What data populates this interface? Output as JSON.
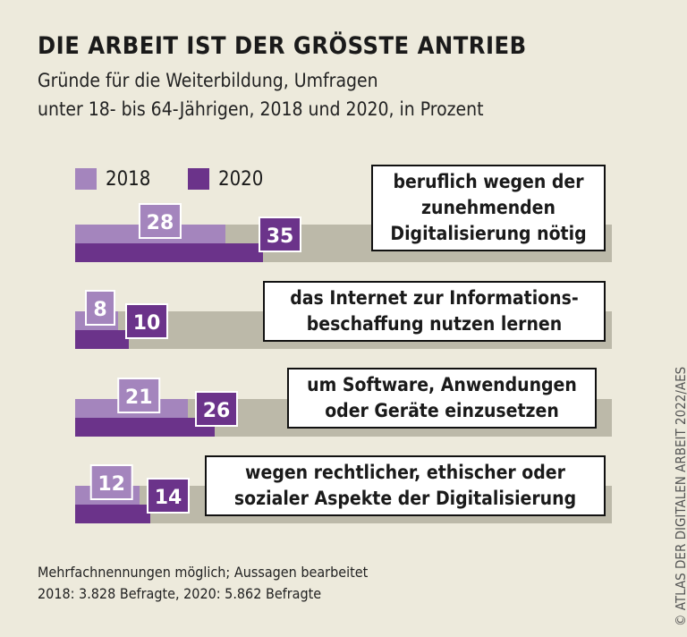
{
  "title": "DIE ARBEIT IST DER GRÖSSTE ANTRIEB",
  "subtitle": [
    "Gründe für die Weiterbildung, Umfragen",
    "unter 18- bis 64-Jährigen, 2018 und 2020, in Prozent"
  ],
  "notes": [
    "Mehrfachnennungen möglich; Aussagen bearbeitet",
    "2018: 3.828 Befragte, 2020: 5.862 Befragte"
  ],
  "credit": "© ATLAS DER DIGITALEN ARBEIT 2022/AES",
  "colors": {
    "2018": "#a485bd",
    "2020": "#6b338a",
    "track": "#bcb9a9",
    "background": "#edeadc"
  },
  "chart_data": {
    "type": "bar",
    "orientation": "horizontal",
    "xlim": [
      0,
      100
    ],
    "categories": [
      "beruflich wegen der zunehmenden Digitalisierung nötig",
      "das Internet zur Informationsbeschaffung nutzen lernen",
      "um Software, Anwendungen oder Geräte einzusetzen",
      "wegen rechtlicher, ethischer oder sozialer Aspekte der Digitalisierung"
    ],
    "category_lines": [
      [
        "beruflich wegen der",
        "zunehmenden",
        "Digitalisierung nötig"
      ],
      [
        "das Internet zur Informations-",
        "beschaffung nutzen lernen"
      ],
      [
        "um Software, Anwendungen",
        "oder Geräte einzusetzen"
      ],
      [
        "wegen rechtlicher, ethischer oder",
        "sozialer Aspekte der Digitalisierung"
      ]
    ],
    "series": [
      {
        "name": "2018",
        "values": [
          28,
          8,
          21,
          12
        ]
      },
      {
        "name": "2020",
        "values": [
          35,
          10,
          26,
          14
        ]
      }
    ],
    "legend": "top-left"
  }
}
